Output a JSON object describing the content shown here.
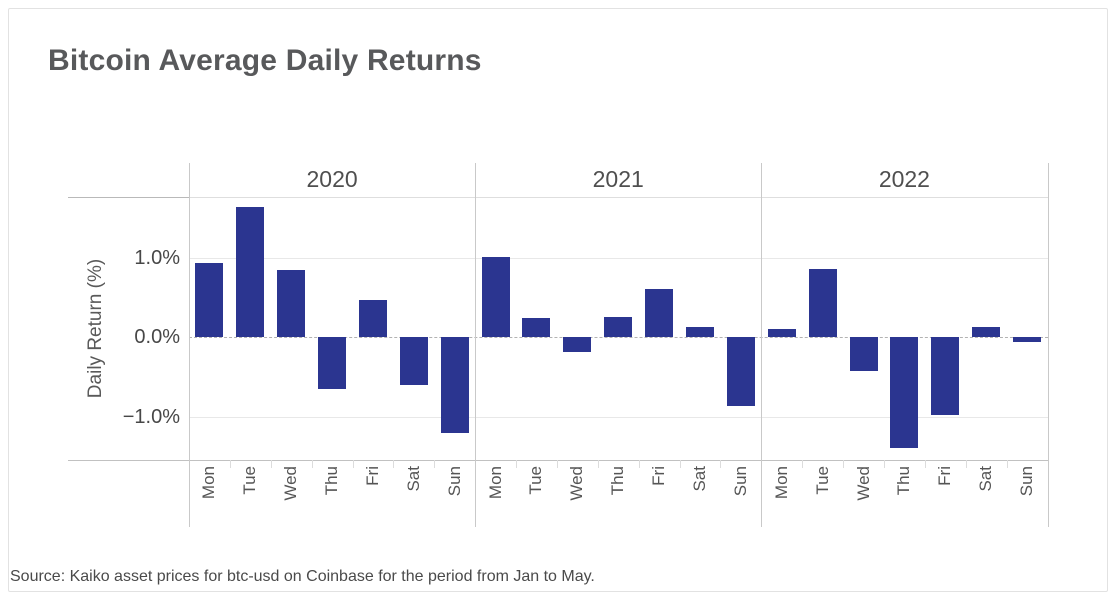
{
  "title": "Bitcoin Average Daily Returns",
  "source_note": "Source: Kaiko asset prices for btc-usd on Coinbase for the period from Jan to May.",
  "colors": {
    "bar": "#2b3590",
    "title_text": "#58595b",
    "axis_text": "#555555"
  },
  "chart_data": {
    "type": "bar",
    "title": "Bitcoin Average Daily Returns",
    "xlabel": "",
    "ylabel": "Daily Return (%)",
    "categories": [
      "Mon",
      "Tue",
      "Wed",
      "Thu",
      "Fri",
      "Sat",
      "Sun"
    ],
    "facets": [
      "2020",
      "2021",
      "2022"
    ],
    "series": [
      {
        "name": "2020",
        "values": [
          0.93,
          1.63,
          0.84,
          -0.65,
          0.46,
          -0.6,
          -1.21
        ]
      },
      {
        "name": "2021",
        "values": [
          1.01,
          0.24,
          -0.19,
          0.25,
          0.6,
          0.13,
          -0.87
        ]
      },
      {
        "name": "2022",
        "values": [
          0.1,
          0.85,
          -0.43,
          -1.39,
          -0.98,
          0.13,
          -0.06
        ]
      }
    ],
    "y_ticks": [
      {
        "label": "1.0%",
        "value": 1.0
      },
      {
        "label": "0.0%",
        "value": 0.0
      },
      {
        "label": "−1.0%",
        "value": -1.0
      }
    ],
    "ylim": [
      -1.55,
      1.76
    ],
    "grid": true,
    "zero_line": "dashed",
    "legend": "none",
    "bar_color": "#2b3590"
  }
}
